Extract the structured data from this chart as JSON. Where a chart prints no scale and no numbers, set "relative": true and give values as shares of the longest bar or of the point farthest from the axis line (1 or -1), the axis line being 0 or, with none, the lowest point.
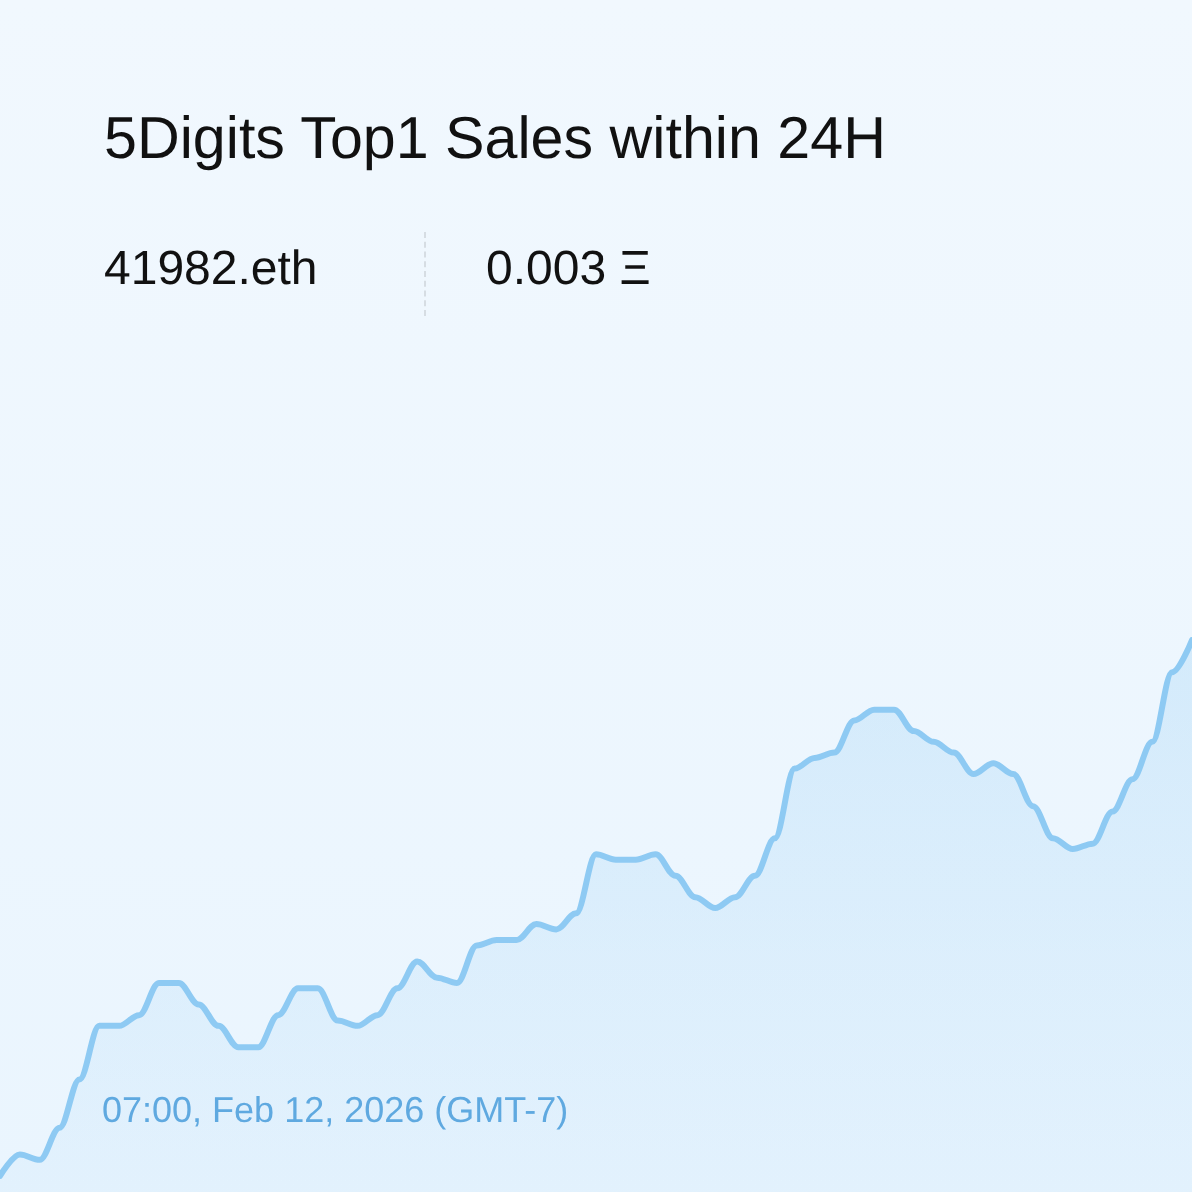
{
  "chart_data": {
    "type": "area",
    "title": "5Digits Top1 Sales within 24H",
    "annotations": [
      "41982.eth",
      "0.003 Ξ",
      "07:00, Feb 12, 2026 (GMT-7)"
    ],
    "relative": true,
    "color": "#8ecaf3",
    "categories": [
      null,
      null,
      null,
      null,
      null,
      null,
      null,
      null,
      null,
      null,
      null,
      null,
      null,
      null,
      null,
      null,
      null,
      null,
      null,
      null,
      null,
      null,
      null,
      null,
      null,
      null,
      null,
      null,
      null,
      null,
      null,
      null,
      null,
      null,
      null,
      null,
      null,
      null,
      null,
      null,
      null,
      null,
      null,
      null,
      null,
      null,
      null,
      null,
      null,
      null,
      null,
      null,
      null,
      null,
      null,
      null,
      null,
      null,
      null,
      null,
      null
    ],
    "values": [
      0,
      0.04,
      0.03,
      0.09,
      0.18,
      0.28,
      0.28,
      0.3,
      0.36,
      0.36,
      0.32,
      0.28,
      0.24,
      0.24,
      0.3,
      0.35,
      0.35,
      0.29,
      0.28,
      0.3,
      0.35,
      0.4,
      0.37,
      0.36,
      0.43,
      0.44,
      0.44,
      0.47,
      0.46,
      0.49,
      0.6,
      0.59,
      0.59,
      0.6,
      0.56,
      0.52,
      0.5,
      0.52,
      0.56,
      0.63,
      0.76,
      0.78,
      0.79,
      0.85,
      0.87,
      0.87,
      0.83,
      0.81,
      0.79,
      0.75,
      0.77,
      0.75,
      0.69,
      0.63,
      0.61,
      0.62,
      0.68,
      0.74,
      0.81,
      0.94,
      1
    ]
  }
}
